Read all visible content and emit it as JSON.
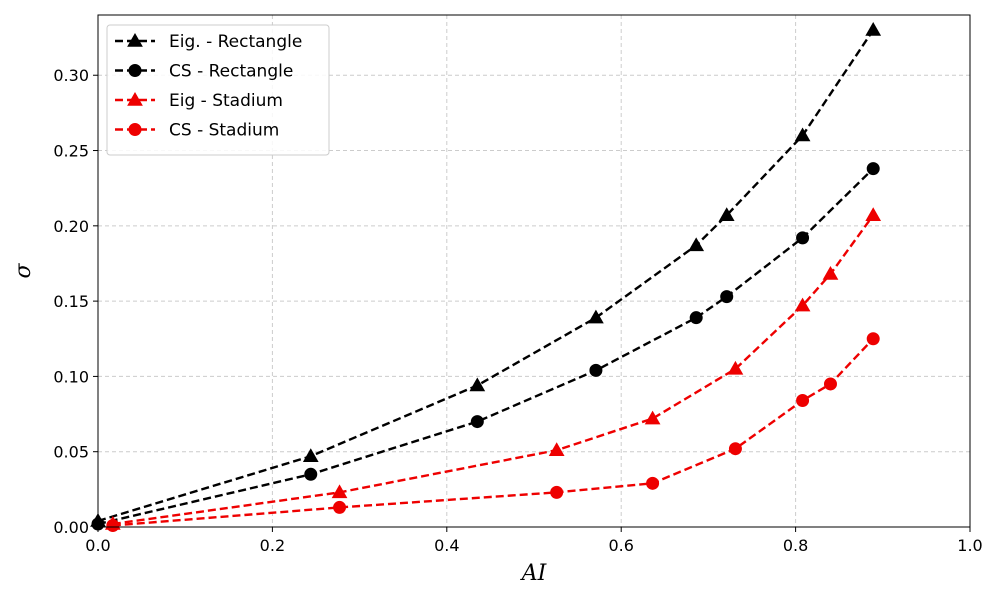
{
  "chart_data": {
    "type": "line",
    "title": "",
    "xlabel": "AI",
    "ylabel": "σ",
    "xlim": [
      0.0,
      1.0
    ],
    "ylim": [
      0.0,
      0.34
    ],
    "grid": true,
    "legend_position": "top-left",
    "x_ticks": [
      0.0,
      0.2,
      0.4,
      0.6,
      0.8,
      1.0
    ],
    "x_tick_labels": [
      "0.0",
      "0.2",
      "0.4",
      "0.6",
      "0.8",
      "1.0"
    ],
    "y_ticks": [
      0.0,
      0.05,
      0.1,
      0.15,
      0.2,
      0.25,
      0.3
    ],
    "y_tick_labels": [
      "0.00",
      "0.05",
      "0.10",
      "0.15",
      "0.20",
      "0.25",
      "0.30"
    ],
    "series": [
      {
        "name": "Eig. - Rectangle",
        "color": "#000000",
        "marker": "triangle",
        "x": [
          0.0,
          0.244,
          0.435,
          0.571,
          0.686,
          0.721,
          0.808,
          0.889
        ],
        "y": [
          0.004,
          0.047,
          0.094,
          0.139,
          0.187,
          0.207,
          0.26,
          0.33
        ]
      },
      {
        "name": "CS - Rectangle",
        "color": "#000000",
        "marker": "circle",
        "x": [
          0.0,
          0.244,
          0.435,
          0.571,
          0.686,
          0.721,
          0.808,
          0.889
        ],
        "y": [
          0.002,
          0.035,
          0.07,
          0.104,
          0.139,
          0.153,
          0.192,
          0.238
        ]
      },
      {
        "name": "Eig - Stadium",
        "color": "#ee0000",
        "marker": "triangle",
        "x": [
          0.017,
          0.277,
          0.526,
          0.636,
          0.731,
          0.808,
          0.84,
          0.889
        ],
        "y": [
          0.002,
          0.023,
          0.051,
          0.072,
          0.105,
          0.147,
          0.168,
          0.207
        ]
      },
      {
        "name": "CS - Stadium",
        "color": "#ee0000",
        "marker": "circle",
        "x": [
          0.017,
          0.277,
          0.526,
          0.636,
          0.731,
          0.808,
          0.84,
          0.889
        ],
        "y": [
          0.001,
          0.013,
          0.023,
          0.029,
          0.052,
          0.084,
          0.095,
          0.125
        ]
      }
    ]
  }
}
